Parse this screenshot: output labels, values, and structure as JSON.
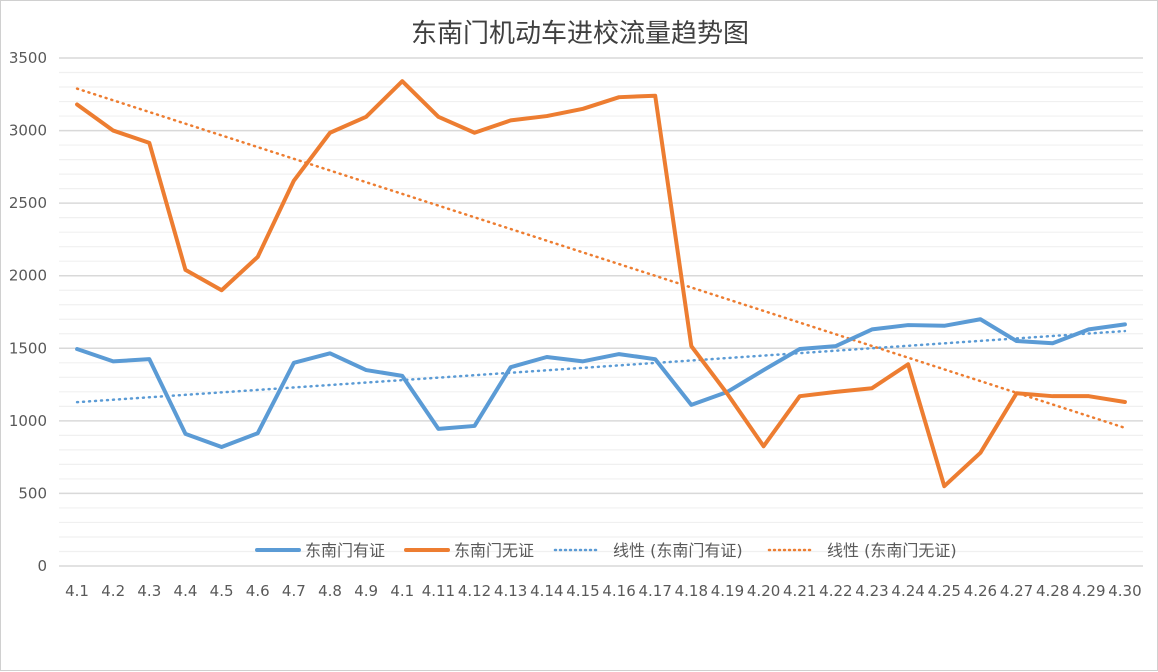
{
  "chart_data": {
    "type": "line",
    "title": "东南门机动车进校流量趋势图",
    "xlabel": "",
    "ylabel": "",
    "ylim": [
      0,
      3500
    ],
    "yticks": [
      0,
      500,
      1000,
      1500,
      2000,
      2500,
      3000,
      3500
    ],
    "grid": true,
    "legend_position": "bottom",
    "categories": [
      "4.1",
      "4.2",
      "4.3",
      "4.4",
      "4.5",
      "4.6",
      "4.7",
      "4.8",
      "4.9",
      "4.1",
      "4.11",
      "4.12",
      "4.13",
      "4.14",
      "4.15",
      "4.16",
      "4.17",
      "4.18",
      "4.19",
      "4.20",
      "4.21",
      "4.22",
      "4.23",
      "4.24",
      "4.25",
      "4.26",
      "4.27",
      "4.28",
      "4.29",
      "4.30"
    ],
    "series": [
      {
        "name": "东南门有证",
        "color": "#5b9bd5",
        "values": [
          1495,
          1410,
          1425,
          910,
          820,
          915,
          1400,
          1465,
          1350,
          1310,
          945,
          965,
          1370,
          1440,
          1410,
          1460,
          1425,
          1110,
          1200,
          1350,
          1495,
          1515,
          1630,
          1660,
          1655,
          1700,
          1550,
          1535,
          1630,
          1665
        ]
      },
      {
        "name": "东南门无证",
        "color": "#ed7d31",
        "values": [
          3180,
          3000,
          2915,
          2040,
          1900,
          2130,
          2655,
          2985,
          3095,
          3340,
          3095,
          2985,
          3070,
          3100,
          3150,
          3230,
          3240,
          1515,
          1185,
          825,
          1170,
          1200,
          1225,
          1390,
          550,
          780,
          1190,
          1170,
          1170,
          1130
        ]
      }
    ],
    "trendlines": [
      {
        "name": "线性 (东南门有证)",
        "of": "东南门有证",
        "type": "linear",
        "color": "#5b9bd5"
      },
      {
        "name": "线性 (东南门无证)",
        "of": "东南门无证",
        "type": "linear",
        "color": "#ed7d31"
      }
    ]
  }
}
